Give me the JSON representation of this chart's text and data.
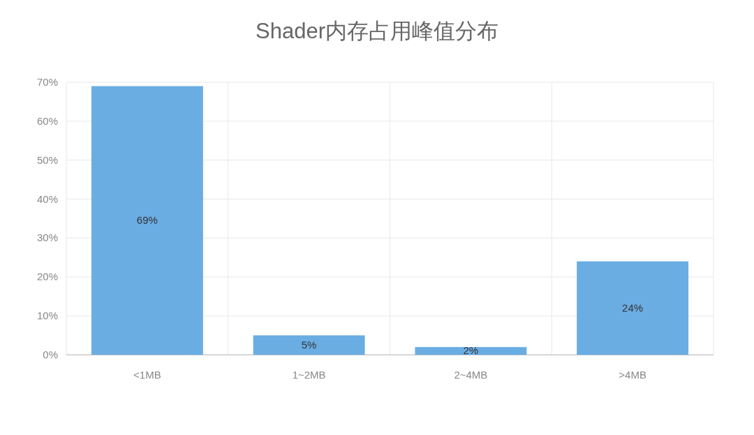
{
  "chart_data": {
    "type": "bar",
    "title": "Shader内存占用峰值分布",
    "categories": [
      "<1MB",
      "1~2MB",
      "2~4MB",
      ">4MB"
    ],
    "values": [
      69,
      5,
      2,
      24
    ],
    "color": "#6aade3",
    "value_labels": [
      "69%",
      "5%",
      "2%",
      "24%"
    ],
    "ylim": [
      0,
      70
    ],
    "yticks": [
      {
        "value": 0,
        "label": "0%"
      },
      {
        "value": 10,
        "label": "10%"
      },
      {
        "value": 20,
        "label": "20%"
      },
      {
        "value": 30,
        "label": "30%"
      },
      {
        "value": 40,
        "label": "40%"
      },
      {
        "value": 50,
        "label": "50%"
      },
      {
        "value": 60,
        "label": "60%"
      },
      {
        "value": 70,
        "label": "70%"
      }
    ],
    "grid": true
  }
}
